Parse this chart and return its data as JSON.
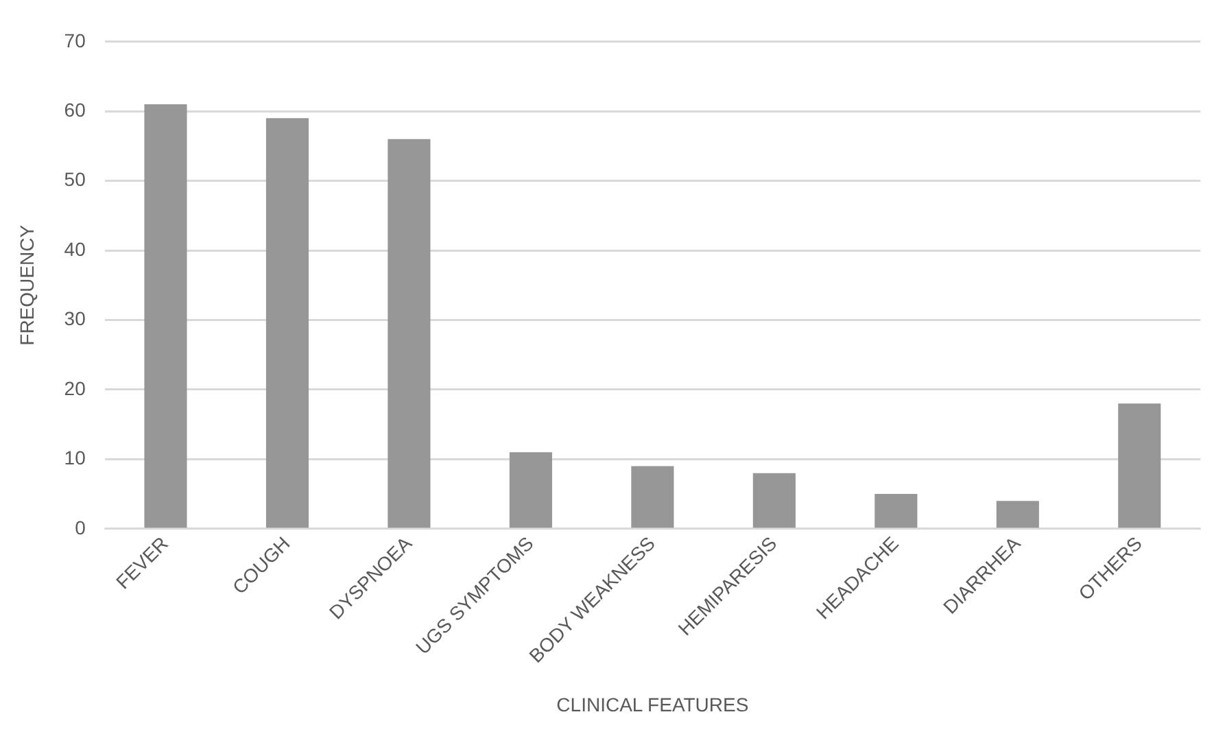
{
  "chart_data": {
    "type": "bar",
    "xlabel": "CLINICAL FEATURES",
    "ylabel": "FREQUENCY",
    "categories": [
      "FEVER",
      "COUGH",
      "DYSPNOEA",
      "UGS SYMPTOMS",
      "BODY WEAKNESS",
      "HEMIPARESIS",
      "HEADACHE",
      "DIARRHEA",
      "OTHERS"
    ],
    "values": [
      61,
      59,
      56,
      11,
      9,
      8,
      5,
      4,
      18
    ],
    "color": "#969696",
    "ylim": [
      0,
      70
    ],
    "yticks": [
      0,
      10,
      20,
      30,
      40,
      50,
      60,
      70
    ],
    "grid": "y",
    "legend": false
  }
}
